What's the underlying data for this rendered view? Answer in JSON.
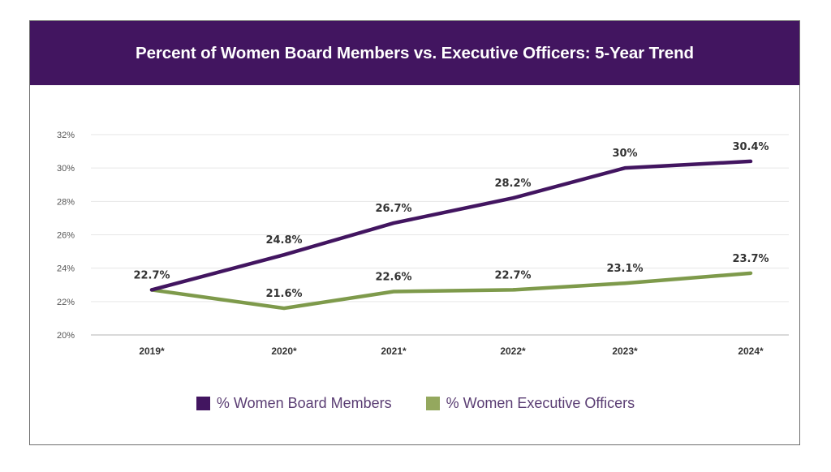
{
  "chart_data": {
    "type": "line",
    "title": "Percent of Women Board Members vs. Executive Officers: 5-Year Trend",
    "xlabel": "",
    "ylabel": "",
    "categories": [
      "2019*",
      "2020*",
      "2021*",
      "2022*",
      "2023*",
      "2024*"
    ],
    "ylim": [
      20,
      32
    ],
    "yticks": [
      20,
      22,
      24,
      26,
      28,
      30,
      32
    ],
    "ytick_labels": [
      "20%",
      "22%",
      "24%",
      "26%",
      "28%",
      "30%",
      "32%"
    ],
    "grid": true,
    "legend_position": "bottom-center",
    "series": [
      {
        "name": "% Women Board Members",
        "color": "#421560",
        "values": [
          22.7,
          24.8,
          26.7,
          28.2,
          30.0,
          30.4
        ],
        "labels": [
          "22.7%",
          "24.8%",
          "26.7%",
          "28.2%",
          "30%",
          "30.4%"
        ]
      },
      {
        "name": "% Women Executive Officers",
        "color": "#7e9a4b",
        "values": [
          22.7,
          21.6,
          22.6,
          22.7,
          23.1,
          23.7
        ],
        "labels": [
          "",
          "21.6%",
          "22.6%",
          "22.7%",
          "23.1%",
          "23.7%"
        ]
      }
    ]
  },
  "colors": {
    "header_bg": "#421560",
    "board": "#421560",
    "exec": "#7e9a4b",
    "grid": "#e6e6e6"
  }
}
